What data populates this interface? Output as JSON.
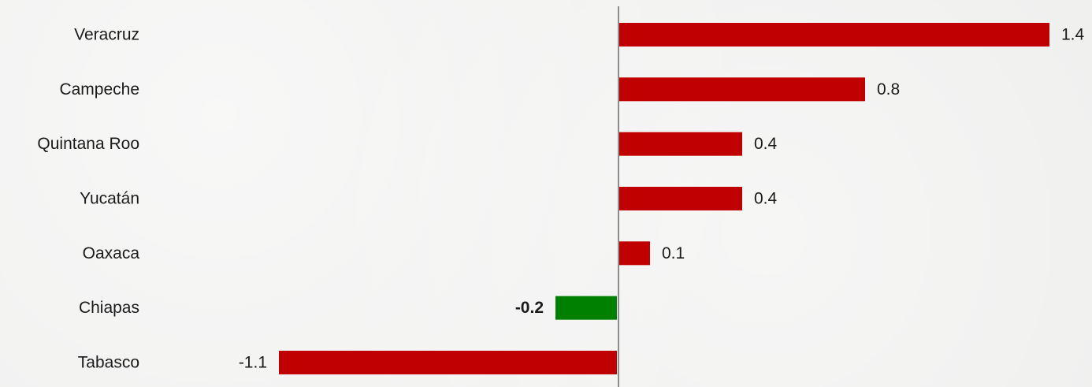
{
  "chart_data": {
    "type": "bar",
    "orientation": "horizontal",
    "categories": [
      "Veracruz",
      "Campeche",
      "Quintana Roo",
      "Yucatán",
      "Oaxaca",
      "Chiapas",
      "Tabasco"
    ],
    "values": [
      1.4,
      0.8,
      0.4,
      0.4,
      0.1,
      -0.2,
      -1.1
    ],
    "value_labels": [
      "1.4",
      "0.8",
      "0.4",
      "0.4",
      "0.1",
      "-0.2",
      "-1.1"
    ],
    "colors": [
      "#c00000",
      "#c00000",
      "#c00000",
      "#c00000",
      "#c00000",
      "#008000",
      "#c00000"
    ],
    "highlight_category": "Chiapas",
    "title": "",
    "xlabel": "",
    "ylabel": "",
    "xlim": [
      -1.1,
      1.4
    ],
    "grid": false,
    "zero_axis_color": "#8c8c8c"
  }
}
